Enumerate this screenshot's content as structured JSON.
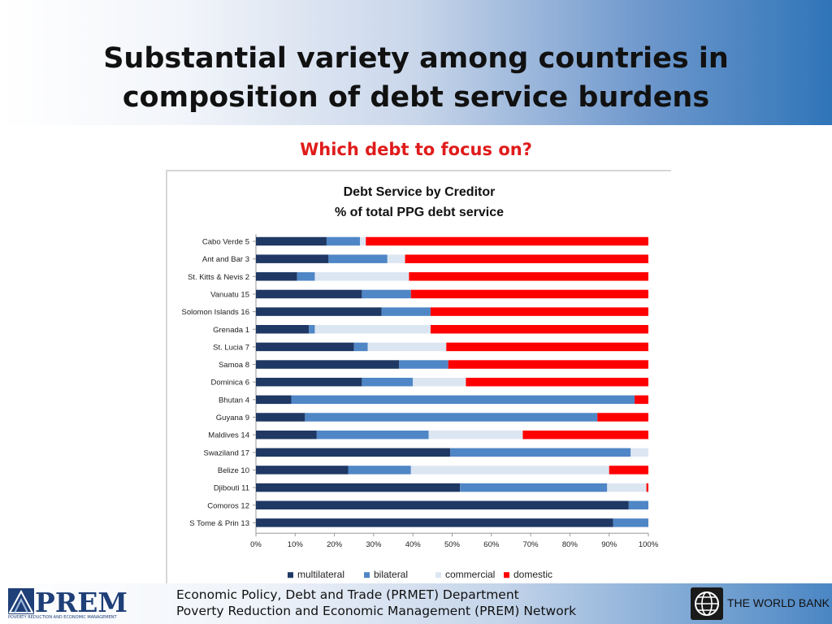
{
  "slide": {
    "title_line1": "Substantial variety among countries in",
    "title_line2": "composition of debt service burdens",
    "subtitle": "Which debt to focus on?"
  },
  "footer": {
    "line1": "Economic Policy, Debt and Trade (PRMET) Department",
    "line2": "Poverty Reduction and Economic Management (PREM) Network",
    "prem_logo_text": "PREM",
    "prem_logo_tagline": "POVERTY REDUCTION AND ECONOMIC MANAGEMENT",
    "world_bank_label": "THE WORLD BANK"
  },
  "colors": {
    "multilateral": "#1f3864",
    "bilateral": "#4f86c6",
    "commercial": "#dce6f2",
    "domestic": "#ff0000",
    "subtitle": "#e01b1b"
  },
  "chart_data": {
    "type": "bar",
    "orientation": "horizontal",
    "stacked": "percent",
    "title": "Debt Service by Creditor",
    "subtitle": "% of total PPG debt service",
    "categories": [
      "Cabo Verde 5",
      "Ant and Bar 3",
      "St. Kitts & Nevis 2",
      "Vanuatu 15",
      "Solomon Islands 16",
      "Grenada 1",
      "St. Lucia 7",
      "Samoa 8",
      "Dominica 6",
      "Bhutan 4",
      "Guyana 9",
      "Maldives 14",
      "Swaziland 17",
      "Belize 10",
      "Djibouti 11",
      "Comoros 12",
      "S Tome & Prin 13"
    ],
    "series": [
      {
        "name": "multilateral",
        "values": [
          18,
          18.5,
          10.5,
          27,
          32,
          13.5,
          25,
          36.5,
          27,
          9,
          12.5,
          15.5,
          49.5,
          23.5,
          52,
          95,
          91
        ]
      },
      {
        "name": "bilateral",
        "values": [
          8.5,
          15,
          4.5,
          12.5,
          12.5,
          1.5,
          3.5,
          12.5,
          13,
          87.5,
          74.5,
          28.5,
          46,
          16,
          37.5,
          5,
          9
        ]
      },
      {
        "name": "commercial",
        "values": [
          1.5,
          4.5,
          24,
          0,
          0,
          29.5,
          20,
          0,
          13.5,
          0,
          0,
          24,
          4.5,
          50.5,
          10,
          0,
          0
        ]
      },
      {
        "name": "domestic",
        "values": [
          72,
          62,
          61,
          60.5,
          55.5,
          55.5,
          51.5,
          51,
          46.5,
          3.5,
          13,
          32,
          0,
          10,
          0.5,
          0,
          0
        ]
      }
    ],
    "x_ticks": [
      "0%",
      "10%",
      "20%",
      "30%",
      "40%",
      "50%",
      "60%",
      "70%",
      "80%",
      "90%",
      "100%"
    ],
    "xlim": [
      0,
      100
    ],
    "grid": false,
    "legend_position": "bottom"
  }
}
